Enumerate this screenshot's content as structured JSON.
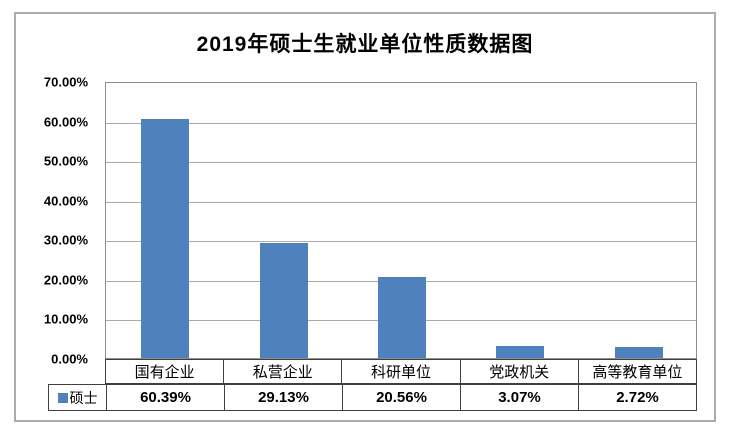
{
  "title": "2019年硕士生就业单位性质数据图",
  "legend": {
    "series_label": "硕士",
    "marker_color": "#4f81bd"
  },
  "colors": {
    "bar": "#4f81bd",
    "gridline": "#a9a9a9",
    "plot_border": "#8e8e8e",
    "table_border": "#3f3f3f",
    "frame_border": "#ababab"
  },
  "chart_data": {
    "type": "bar",
    "title": "2019年硕士生就业单位性质数据图",
    "categories": [
      "国有企业",
      "私营企业",
      "科研单位",
      "党政机关",
      "高等教育单位"
    ],
    "series": [
      {
        "name": "硕士",
        "values": [
          60.39,
          29.13,
          20.56,
          3.07,
          2.72
        ]
      }
    ],
    "value_labels": [
      "60.39%",
      "29.13%",
      "20.56%",
      "3.07%",
      "2.72%"
    ],
    "y_ticks": [
      "70.00%",
      "60.00%",
      "50.00%",
      "40.00%",
      "30.00%",
      "20.00%",
      "10.00%",
      "0.00%"
    ],
    "ylim": [
      0,
      70
    ],
    "xlabel": "",
    "ylabel": "",
    "grid": true,
    "legend_position": "bottom-table"
  }
}
